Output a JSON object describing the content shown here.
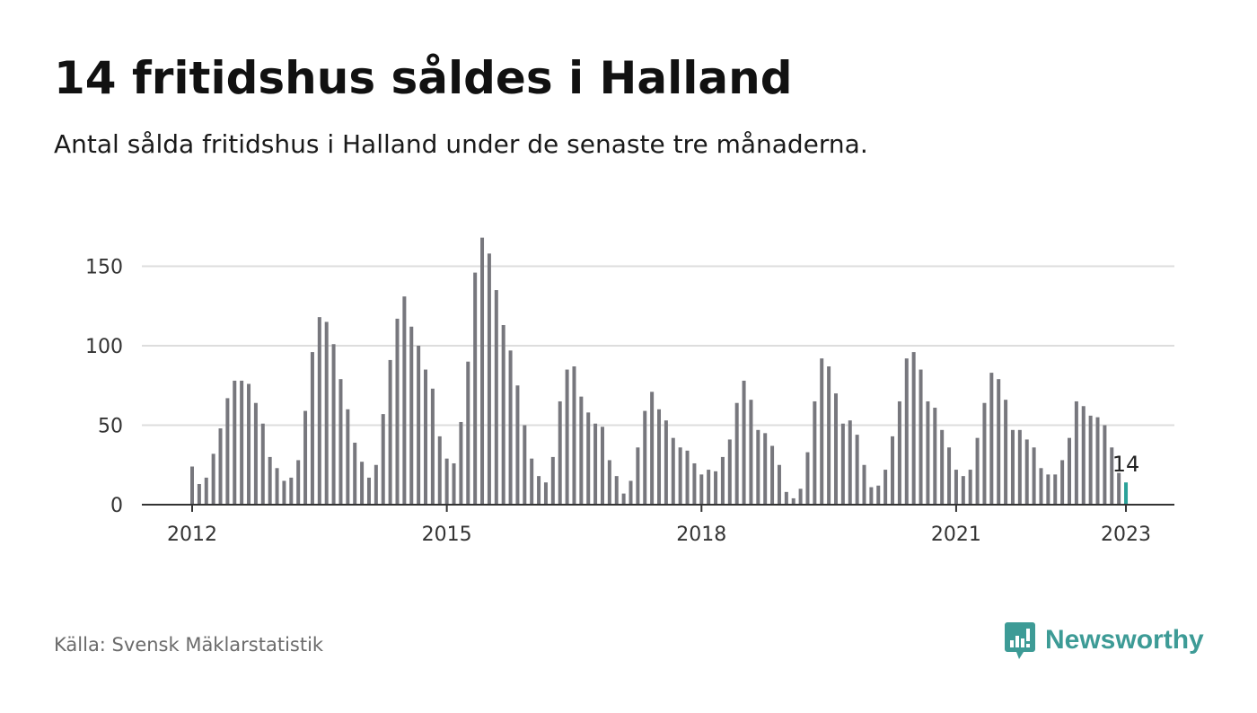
{
  "title": "14 fritidshus såldes i Halland",
  "subtitle": "Antal sålda fritidshus i Halland under de senaste tre månaderna.",
  "source": "Källa: Svensk Mäklarstatistik",
  "brand": {
    "name": "Newsworthy",
    "color": "#3d9b96",
    "icon": "chart-bubble-icon"
  },
  "colors": {
    "bar": "#77777d",
    "highlight": "#2ba199",
    "grid": "#dddddd",
    "axis": "#333333"
  },
  "chart_data": {
    "type": "bar",
    "xlabel": "",
    "ylabel": "",
    "ylim": [
      0,
      170
    ],
    "yticks": [
      0,
      50,
      100,
      150
    ],
    "xticks": [
      "2012",
      "2015",
      "2018",
      "2021",
      "2023"
    ],
    "grid": true,
    "start": "2012-01",
    "end": "2023-01",
    "values": [
      24,
      13,
      17,
      32,
      48,
      67,
      78,
      78,
      76,
      64,
      51,
      30,
      23,
      15,
      17,
      28,
      59,
      96,
      118,
      115,
      101,
      79,
      60,
      39,
      27,
      17,
      25,
      57,
      91,
      117,
      131,
      112,
      100,
      85,
      73,
      43,
      29,
      26,
      52,
      90,
      146,
      168,
      158,
      135,
      113,
      97,
      75,
      50,
      29,
      18,
      14,
      30,
      65,
      85,
      87,
      68,
      58,
      51,
      49,
      28,
      18,
      7,
      15,
      36,
      59,
      71,
      60,
      53,
      42,
      36,
      34,
      26,
      19,
      22,
      21,
      30,
      41,
      64,
      78,
      66,
      47,
      45,
      37,
      25,
      8,
      4,
      10,
      33,
      65,
      92,
      87,
      70,
      51,
      53,
      44,
      25,
      11,
      12,
      22,
      43,
      65,
      92,
      96,
      85,
      65,
      61,
      47,
      36,
      22,
      18,
      22,
      42,
      64,
      83,
      79,
      66,
      47,
      47,
      41,
      36,
      23,
      19,
      19,
      28,
      42,
      65,
      62,
      56,
      55,
      50,
      36,
      20,
      14
    ],
    "highlight": {
      "label": "2023-01",
      "value": 14,
      "data_label": "14"
    }
  }
}
